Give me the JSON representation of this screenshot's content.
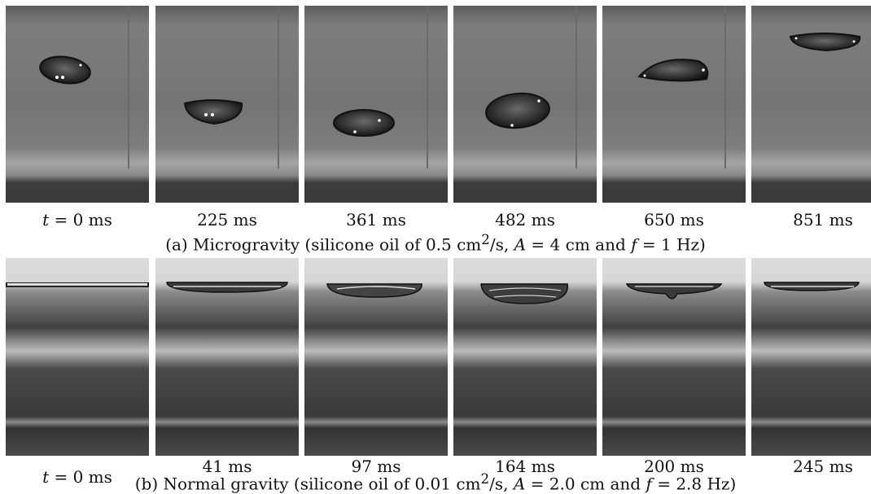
{
  "panel_a": {
    "times": [
      {
        "var": "t",
        "eq": " = 0 ms"
      },
      {
        "text": "225 ms"
      },
      {
        "text": "361 ms"
      },
      {
        "text": "482 ms"
      },
      {
        "text": "650 ms"
      },
      {
        "text": "851 ms"
      }
    ],
    "caption": {
      "pre": "(a) Microgravity (silicone oil of 0.5 cm",
      "sup": "2",
      "mid1": "/s, ",
      "var1": "A",
      "mid2": " = 4 cm and ",
      "var2": "f",
      "post": " = 1 Hz)"
    }
  },
  "panel_b": {
    "times": [
      {
        "var": "t",
        "eq": " = 0 ms"
      },
      {
        "text": "41 ms"
      },
      {
        "text": "97 ms"
      },
      {
        "text": "164 ms"
      },
      {
        "text": "200 ms"
      },
      {
        "text": "245 ms"
      }
    ],
    "caption": {
      "pre": "(b) Normal gravity (silicone oil of 0.01 cm",
      "sup": "2",
      "mid1": "/s, ",
      "var1": "A",
      "mid2": " = 2.0 cm and ",
      "var2": "f",
      "post": " = 2.8 Hz)"
    }
  }
}
